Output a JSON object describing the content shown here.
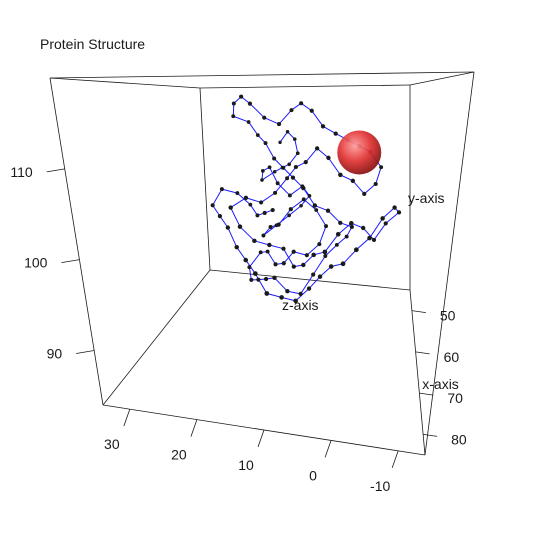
{
  "chart_data": {
    "type": "scatter",
    "subtype": "3d-line",
    "title": "Protein Structure",
    "xlabel": "x-axis",
    "ylabel": "y-axis",
    "zlabel": "z-axis",
    "x_ticks": [
      "50",
      "60",
      "70",
      "80"
    ],
    "y_ticks": [
      "-10",
      "0",
      "10",
      "20",
      "30"
    ],
    "z_ticks": [
      "90",
      "100",
      "110"
    ],
    "xlim": [
      45,
      85
    ],
    "ylim": [
      -14,
      34
    ],
    "zlim": [
      84,
      120
    ],
    "line_color": "#1a1aff",
    "point_color": "#1a1a1a",
    "highlight_color": "#e03030",
    "highlight": {
      "x": 58,
      "y": -2,
      "z": 110
    },
    "chain": [
      [
        48,
        15,
        110
      ],
      [
        49,
        13,
        112
      ],
      [
        51,
        11,
        111
      ],
      [
        53,
        10,
        109
      ],
      [
        52,
        12,
        107
      ],
      [
        50,
        14,
        106
      ],
      [
        49,
        16,
        105
      ],
      [
        51,
        18,
        104
      ],
      [
        53,
        17,
        106
      ],
      [
        55,
        15,
        107
      ],
      [
        57,
        13,
        105
      ],
      [
        56,
        11,
        103
      ],
      [
        54,
        9,
        104
      ],
      [
        52,
        8,
        102
      ],
      [
        51,
        10,
        100
      ],
      [
        53,
        12,
        99
      ],
      [
        55,
        14,
        98
      ],
      [
        57,
        16,
        97
      ],
      [
        59,
        14,
        99
      ],
      [
        61,
        12,
        100
      ],
      [
        60,
        10,
        102
      ],
      [
        58,
        8,
        103
      ],
      [
        56,
        6,
        101
      ],
      [
        57,
        4,
        99
      ],
      [
        59,
        5,
        97
      ],
      [
        61,
        7,
        96
      ],
      [
        63,
        9,
        97
      ],
      [
        62,
        11,
        95
      ],
      [
        60,
        13,
        94
      ],
      [
        58,
        15,
        95
      ],
      [
        56,
        17,
        94
      ],
      [
        57,
        19,
        92
      ],
      [
        59,
        18,
        91
      ],
      [
        61,
        16,
        92
      ],
      [
        63,
        14,
        93
      ],
      [
        65,
        12,
        94
      ],
      [
        64,
        10,
        92
      ],
      [
        62,
        8,
        91
      ],
      [
        60,
        6,
        93
      ],
      [
        58,
        4,
        95
      ],
      [
        56,
        2,
        96
      ],
      [
        58,
        0,
        98
      ],
      [
        60,
        -1,
        100
      ],
      [
        62,
        1,
        101
      ],
      [
        64,
        3,
        103
      ],
      [
        66,
        5,
        104
      ],
      [
        65,
        7,
        106
      ],
      [
        63,
        9,
        107
      ],
      [
        61,
        11,
        108
      ],
      [
        59,
        13,
        109
      ],
      [
        57,
        15,
        111
      ],
      [
        55,
        17,
        112
      ],
      [
        54,
        19,
        114
      ],
      [
        56,
        21,
        115
      ],
      [
        58,
        20,
        117
      ],
      [
        60,
        18,
        118
      ],
      [
        62,
        16,
        117
      ],
      [
        61,
        14,
        115
      ],
      [
        59,
        12,
        114
      ],
      [
        58,
        10,
        116
      ],
      [
        60,
        8,
        117
      ],
      [
        62,
        6,
        116
      ],
      [
        64,
        4,
        114
      ],
      [
        63,
        2,
        113
      ],
      [
        61,
        0,
        112
      ],
      [
        59,
        -2,
        111
      ],
      [
        57,
        -4,
        110
      ],
      [
        58,
        -6,
        108
      ],
      [
        60,
        -5,
        106
      ],
      [
        62,
        -3,
        105
      ],
      [
        64,
        -1,
        107
      ],
      [
        66,
        1,
        108
      ],
      [
        65,
        3,
        110
      ],
      [
        63,
        5,
        111
      ],
      [
        62,
        7,
        109
      ],
      [
        60,
        9,
        108
      ],
      [
        58,
        11,
        106
      ],
      [
        59,
        13,
        104
      ],
      [
        61,
        15,
        103
      ],
      [
        63,
        17,
        104
      ],
      [
        65,
        19,
        103
      ],
      [
        67,
        17,
        101
      ],
      [
        66,
        15,
        99
      ],
      [
        64,
        13,
        98
      ],
      [
        62,
        11,
        97
      ],
      [
        63,
        9,
        95
      ],
      [
        65,
        7,
        96
      ],
      [
        67,
        5,
        98
      ],
      [
        69,
        3,
        99
      ],
      [
        68,
        1,
        101
      ],
      [
        66,
        -1,
        102
      ],
      [
        64,
        -3,
        101
      ],
      [
        62,
        -5,
        99
      ],
      [
        61,
        -7,
        101
      ],
      [
        63,
        -9,
        103
      ],
      [
        65,
        -8,
        104
      ],
      [
        67,
        -6,
        103
      ],
      [
        69,
        -4,
        101
      ],
      [
        71,
        -2,
        100
      ],
      [
        70,
        0,
        98
      ],
      [
        68,
        2,
        97
      ],
      [
        66,
        4,
        95
      ],
      [
        65,
        6,
        93
      ],
      [
        67,
        8,
        92
      ],
      [
        69,
        10,
        93
      ],
      [
        71,
        12,
        94
      ],
      [
        70,
        14,
        96
      ],
      [
        68,
        16,
        97
      ],
      [
        66,
        18,
        98
      ],
      [
        64,
        20,
        100
      ],
      [
        62,
        22,
        101
      ],
      [
        60,
        24,
        102
      ],
      [
        58,
        23,
        104
      ],
      [
        56,
        21,
        103
      ],
      [
        55,
        19,
        101
      ],
      [
        57,
        17,
        100
      ],
      [
        59,
        15,
        101
      ],
      [
        61,
        13,
        102
      ]
    ]
  }
}
